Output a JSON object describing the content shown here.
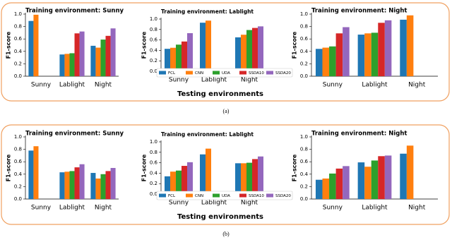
{
  "panels": [
    {
      "xlabel": "Testing environments",
      "caption": "(a)"
    },
    {
      "xlabel": "Testing environments",
      "caption": "(b)"
    }
  ],
  "chart_data": [
    {
      "type": "bar",
      "title": "Training environment: Sunny",
      "ylabel": "F1-score",
      "categories": [
        "Sunny",
        "Lablight",
        "Night"
      ],
      "series": [
        {
          "color": "#1f77b4",
          "values": [
            0.89,
            0.35,
            0.49
          ]
        },
        {
          "color": "#ff7f0e",
          "values": [
            0.99,
            0.36,
            0.46
          ]
        },
        {
          "color": "#2ca02c",
          "values": [
            null,
            0.37,
            0.59
          ]
        },
        {
          "color": "#d62728",
          "values": [
            null,
            0.69,
            0.65
          ]
        },
        {
          "color": "#9467bd",
          "values": [
            null,
            0.72,
            0.77
          ]
        }
      ],
      "ylim": [
        0,
        1.0
      ],
      "yticks": [
        {
          "value": 0,
          "label": "0.0"
        },
        0.2,
        0.4,
        0.6,
        0.8,
        {
          "value": 1,
          "label": "1.0"
        }
      ]
    },
    {
      "type": "bar",
      "title": "Training environment: Lablight",
      "ylabel": "F1-score",
      "categories": [
        "Sunny",
        "Lablight",
        "Night"
      ],
      "series": [
        {
          "name": "FCL",
          "color": "#1f77b4",
          "values": [
            0.43,
            0.93,
            0.65
          ]
        },
        {
          "name": "CNN",
          "color": "#ff7f0e",
          "values": [
            0.45,
            0.97,
            0.7
          ]
        },
        {
          "name": "UDA",
          "color": "#2ca02c",
          "values": [
            0.51,
            null,
            0.79
          ]
        },
        {
          "name": "SSDA10",
          "color": "#d62728",
          "values": [
            0.57,
            null,
            0.83
          ]
        },
        {
          "name": "SSDA20",
          "color": "#9467bd",
          "values": [
            0.73,
            null,
            0.86
          ]
        }
      ],
      "ylim": [
        0,
        1.0
      ],
      "yticks": [
        {
          "value": 0,
          "label": "0.0"
        },
        0.2,
        0.4,
        0.6,
        0.8,
        {
          "value": 1,
          "label": "1.0"
        }
      ],
      "legend": "bottom"
    },
    {
      "type": "bar",
      "title": "Training environment: Night",
      "ylabel": "F1-score",
      "categories": [
        "Sunny",
        "Lablight",
        "Night"
      ],
      "series": [
        {
          "color": "#1f77b4",
          "values": [
            0.44,
            0.67,
            0.91
          ]
        },
        {
          "color": "#ff7f0e",
          "values": [
            0.46,
            0.69,
            0.98
          ]
        },
        {
          "color": "#2ca02c",
          "values": [
            0.48,
            0.7,
            null
          ]
        },
        {
          "color": "#d62728",
          "values": [
            0.69,
            0.86,
            null
          ]
        },
        {
          "color": "#9467bd",
          "values": [
            0.79,
            0.9,
            null
          ]
        }
      ],
      "ylim": [
        0,
        1.0
      ],
      "yticks": [
        {
          "value": 0,
          "label": "0.0"
        },
        0.2,
        0.4,
        0.6,
        0.8,
        {
          "value": 1,
          "label": "1.0"
        }
      ]
    },
    {
      "type": "bar",
      "title": "Training environment: Sunny",
      "ylabel": "F1-score",
      "categories": [
        "Sunny",
        "Lablight",
        "Night"
      ],
      "series": [
        {
          "color": "#1f77b4",
          "values": [
            0.78,
            0.43,
            0.42
          ]
        },
        {
          "color": "#ff7f0e",
          "values": [
            0.85,
            0.44,
            0.33
          ]
        },
        {
          "color": "#2ca02c",
          "values": [
            null,
            0.45,
            0.4
          ]
        },
        {
          "color": "#d62728",
          "values": [
            null,
            0.51,
            0.45
          ]
        },
        {
          "color": "#9467bd",
          "values": [
            null,
            0.56,
            0.5
          ]
        }
      ],
      "ylim": [
        0,
        1.0
      ],
      "yticks": [
        {
          "value": 0,
          "label": "0.0"
        },
        0.2,
        0.4,
        0.6,
        0.8,
        {
          "value": 1,
          "label": "1.0"
        }
      ]
    },
    {
      "type": "bar",
      "title": "Training environment: Lablight",
      "ylabel": "F1-score",
      "categories": [
        "Sunny",
        "Lablight",
        "Night"
      ],
      "series": [
        {
          "name": "FCL",
          "color": "#1f77b4",
          "values": [
            0.34,
            0.76,
            0.59
          ]
        },
        {
          "name": "CNN",
          "color": "#ff7f0e",
          "values": [
            0.43,
            0.87,
            0.59
          ]
        },
        {
          "name": "UDA",
          "color": "#2ca02c",
          "values": [
            0.45,
            null,
            0.6
          ]
        },
        {
          "name": "SSDA10",
          "color": "#d62728",
          "values": [
            0.54,
            null,
            0.67
          ]
        },
        {
          "name": "SSDA20",
          "color": "#9467bd",
          "values": [
            0.61,
            null,
            0.72
          ]
        }
      ],
      "ylim": [
        0,
        1.0
      ],
      "yticks": [
        {
          "value": 0,
          "label": "0.0"
        },
        0.2,
        0.4,
        0.6,
        0.8,
        {
          "value": 1,
          "label": "1.0"
        }
      ],
      "legend": "bottom"
    },
    {
      "type": "bar",
      "title": "Training environment: Night",
      "ylabel": "F1-score",
      "categories": [
        "Sunny",
        "Lablight",
        "Night"
      ],
      "series": [
        {
          "color": "#1f77b4",
          "values": [
            0.31,
            0.59,
            0.73
          ]
        },
        {
          "color": "#ff7f0e",
          "values": [
            0.33,
            0.52,
            0.86
          ]
        },
        {
          "color": "#2ca02c",
          "values": [
            0.41,
            0.62,
            null
          ]
        },
        {
          "color": "#d62728",
          "values": [
            0.49,
            0.69,
            null
          ]
        },
        {
          "color": "#9467bd",
          "values": [
            0.53,
            0.7,
            null
          ]
        }
      ],
      "ylim": [
        0,
        1.0
      ],
      "yticks": [
        {
          "value": 0,
          "label": "0.0"
        },
        0.2,
        0.4,
        0.6,
        0.8,
        {
          "value": 1,
          "label": "1.0"
        }
      ]
    }
  ]
}
